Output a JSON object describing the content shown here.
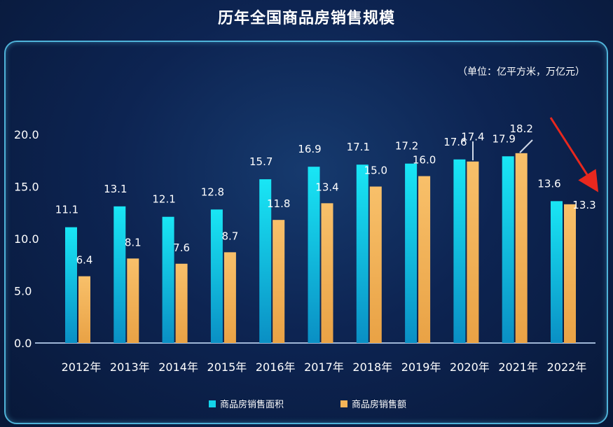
{
  "chart_data": {
    "type": "bar",
    "title": "历年全国商品房销售规模",
    "unit_note": "（单位：亿平方米，万亿元）",
    "categories": [
      "2012年",
      "2013年",
      "2014年",
      "2015年",
      "2016年",
      "2017年",
      "2018年",
      "2019年",
      "2020年",
      "2021年",
      "2022年"
    ],
    "series": [
      {
        "name": "商品房销售面积",
        "color": "#14d4ea",
        "values": [
          11.1,
          13.1,
          12.1,
          12.8,
          15.7,
          16.9,
          17.1,
          17.2,
          17.6,
          17.9,
          13.6
        ]
      },
      {
        "name": "商品房销售额",
        "color": "#f5b458",
        "values": [
          6.4,
          8.1,
          7.6,
          8.7,
          11.8,
          13.4,
          15.0,
          16.0,
          17.4,
          18.2,
          13.3
        ]
      }
    ],
    "yticks": [
      "0.0",
      "5.0",
      "10.0",
      "15.0",
      "20.0"
    ],
    "ylim": [
      0,
      20
    ],
    "legend": "bottom",
    "grid": false,
    "annotation": "red arrow pointing down toward 2022"
  }
}
